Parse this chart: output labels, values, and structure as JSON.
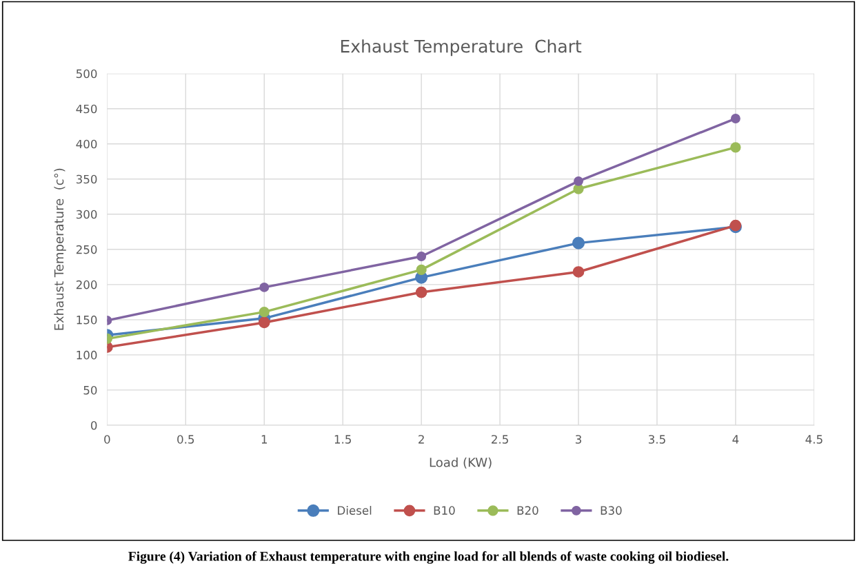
{
  "chart_data": {
    "type": "line",
    "title": "Exhaust Temperature  Chart",
    "xlabel": "Load (KW)",
    "ylabel": "Exhaust Temperature  (c°)",
    "x": [
      0,
      1,
      2,
      3,
      4
    ],
    "series": [
      {
        "name": "Diesel",
        "color": "#4a7ebb",
        "values": [
          128,
          152,
          210,
          259,
          282
        ]
      },
      {
        "name": "B10",
        "color": "#c0504d",
        "values": [
          111,
          146,
          189,
          218,
          284
        ]
      },
      {
        "name": "B20",
        "color": "#9bbb59",
        "values": [
          123,
          161,
          221,
          336,
          395
        ]
      },
      {
        "name": "B30",
        "color": "#8064a2",
        "values": [
          149,
          196,
          240,
          347,
          436
        ]
      }
    ],
    "xlim": [
      0,
      4.5
    ],
    "xticks": [
      0,
      0.5,
      1,
      1.5,
      2,
      2.5,
      3,
      3.5,
      4,
      4.5
    ],
    "ylim": [
      0,
      500
    ],
    "yticks": [
      0,
      50,
      100,
      150,
      200,
      250,
      300,
      350,
      400,
      450,
      500
    ],
    "grid": true,
    "legend": "bottom",
    "marker": "circle",
    "line_style": "solid",
    "annotations": [
      "Figure (4) Variation of Exhaust temperature with engine load for all blends of waste cooking oil biodiesel."
    ]
  }
}
